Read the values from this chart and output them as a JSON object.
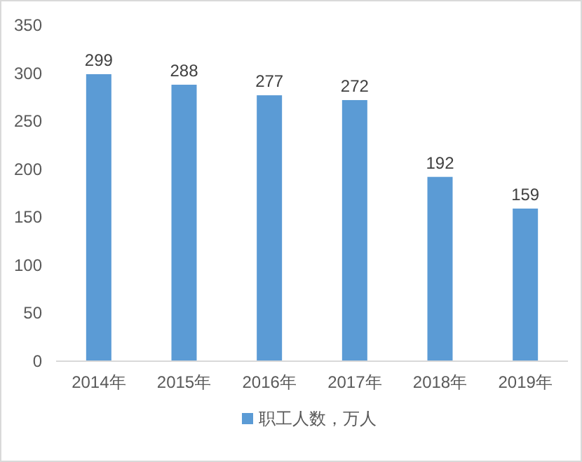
{
  "chart_data": {
    "type": "bar",
    "categories": [
      "2014年",
      "2015年",
      "2016年",
      "2017年",
      "2018年",
      "2019年"
    ],
    "series": [
      {
        "name": "职工人数，万人",
        "color": "#5b9bd5",
        "values": [
          299,
          288,
          277,
          272,
          192,
          159
        ]
      }
    ],
    "ylim": [
      0,
      350
    ],
    "yticks": [
      0,
      50,
      100,
      150,
      200,
      250,
      300,
      350
    ],
    "data_labels": true,
    "legend": "bottom"
  }
}
